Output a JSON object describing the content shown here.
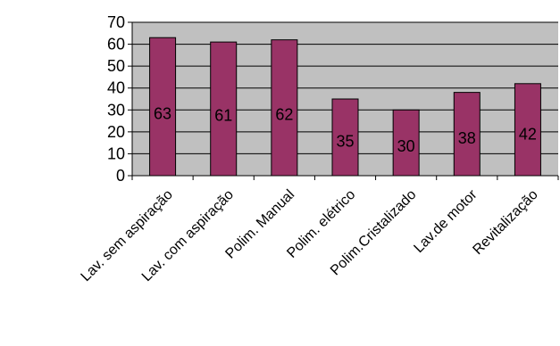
{
  "chart_data": {
    "type": "bar",
    "categories": [
      "Lav. sem aspiração",
      "Lav. com aspiração",
      "Polim. Manual",
      "Polim. elétrico",
      "Polim.Cristalizado",
      "Lav.de motor",
      "Revitalização"
    ],
    "values": [
      63,
      61,
      62,
      35,
      30,
      38,
      42
    ],
    "ylim": [
      0,
      70
    ],
    "yticks": [
      0,
      10,
      20,
      30,
      40,
      50,
      60,
      70
    ],
    "grid": true,
    "data_labels": true,
    "colors": {
      "bar": "#993366",
      "plot_background": "#c0c0c0",
      "gridline": "#000000"
    }
  }
}
